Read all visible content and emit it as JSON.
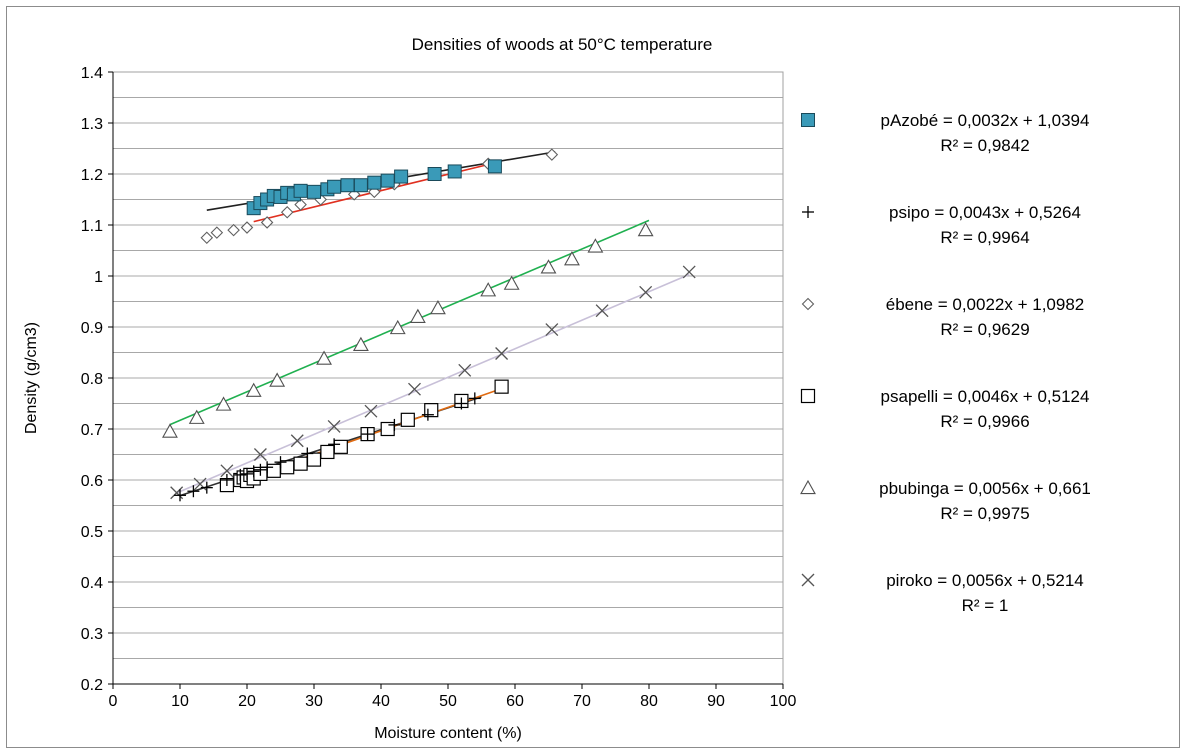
{
  "chart_data": {
    "type": "scatter",
    "title": "Densities of woods at  50°C temperature",
    "xlabel": "Moisture content (%)",
    "ylabel": "Density (g/cm3)",
    "xlim": [
      0,
      100
    ],
    "ylim": [
      0.2,
      1.4
    ],
    "x_ticks": [
      "0",
      "10",
      "20",
      "30",
      "40",
      "50",
      "60",
      "70",
      "80",
      "90",
      "100"
    ],
    "y_ticks": [
      "0.2",
      "0.3",
      "0.4",
      "0.5",
      "0.6",
      "0.7",
      "0.8",
      "0.9",
      "1",
      "1.1",
      "1.2",
      "1.3",
      "1.4"
    ],
    "grid": "horizontal",
    "legend_position": "right",
    "series": [
      {
        "marker": "square-filled",
        "line_color": "#e03020",
        "legend_line1": "pAzobé = 0,0032x + 1,0394",
        "legend_line2": "R² = 0,9842",
        "x": [
          21,
          22,
          23,
          24,
          25,
          26,
          27,
          28,
          30,
          32,
          33,
          35,
          37,
          39,
          41,
          43,
          48,
          51,
          57
        ],
        "y": [
          1.133,
          1.143,
          1.15,
          1.157,
          1.155,
          1.163,
          1.16,
          1.167,
          1.165,
          1.17,
          1.175,
          1.178,
          1.178,
          1.183,
          1.187,
          1.195,
          1.2,
          1.205,
          1.215
        ],
        "fit": {
          "slope": 0.0032,
          "intercept": 1.0394,
          "x_range": [
            21,
            57
          ]
        }
      },
      {
        "marker": "plus",
        "line_color": "#303030",
        "legend_line1": "psipo = 0,0043x + 0,5264",
        "legend_line2": "R² = 0,9964",
        "x": [
          10,
          12,
          14,
          17,
          19,
          20,
          21,
          22,
          23,
          25,
          29,
          33,
          38,
          42,
          47,
          52,
          54
        ],
        "y": [
          0.57,
          0.578,
          0.585,
          0.6,
          0.61,
          0.612,
          0.617,
          0.62,
          0.625,
          0.635,
          0.652,
          0.67,
          0.69,
          0.708,
          0.728,
          0.75,
          0.76
        ],
        "fit": {
          "slope": 0.0043,
          "intercept": 0.5264,
          "x_range": [
            10,
            55
          ]
        }
      },
      {
        "marker": "diamond",
        "line_color": "#202020",
        "legend_line1": "ébene = 0,0022x + 1,0982",
        "legend_line2": "R² = 0,9629",
        "x": [
          14,
          15.5,
          18,
          20,
          23,
          26,
          28,
          31,
          36,
          39,
          42,
          48,
          56,
          65.5
        ],
        "y": [
          1.075,
          1.085,
          1.09,
          1.095,
          1.105,
          1.125,
          1.14,
          1.15,
          1.16,
          1.165,
          1.18,
          1.2,
          1.22,
          1.238
        ],
        "fit": {
          "slope": 0.0022,
          "intercept": 1.0982,
          "x_range": [
            14,
            66
          ]
        }
      },
      {
        "marker": "square-open",
        "line_color": "#e06a10",
        "legend_line1": "psapelli = 0,0046x + 0,5124",
        "legend_line2": "R² = 0,9966",
        "x": [
          17,
          19,
          19.5,
          20,
          20.5,
          21,
          22,
          24,
          26,
          28,
          30,
          32,
          34,
          38,
          41,
          44,
          47.5,
          52,
          58
        ],
        "y": [
          0.59,
          0.6,
          0.605,
          0.598,
          0.61,
          0.603,
          0.612,
          0.618,
          0.625,
          0.632,
          0.64,
          0.655,
          0.665,
          0.69,
          0.7,
          0.718,
          0.737,
          0.755,
          0.783
        ],
        "fit": {
          "slope": 0.0046,
          "intercept": 0.5124,
          "x_range": [
            17,
            58
          ]
        }
      },
      {
        "marker": "triangle",
        "line_color": "#20b050",
        "legend_line1": "pbubinga = 0,0056x + 0,661",
        "legend_line2": "R² = 0,9975",
        "x": [
          8.5,
          12.5,
          16.5,
          21,
          24.5,
          31.5,
          37,
          42.5,
          45.5,
          48.5,
          56,
          59.5,
          65,
          68.5,
          72,
          79.5
        ],
        "y": [
          0.695,
          0.722,
          0.748,
          0.775,
          0.795,
          0.838,
          0.865,
          0.898,
          0.92,
          0.937,
          0.972,
          0.985,
          1.017,
          1.033,
          1.058,
          1.09
        ],
        "fit": {
          "slope": 0.0056,
          "intercept": 0.661,
          "x_range": [
            8.5,
            80
          ]
        }
      },
      {
        "marker": "x",
        "line_color": "#c8c0d8",
        "legend_line1": "piroko = 0,0056x + 0,5214",
        "legend_line2": "R² = 1",
        "x": [
          9.5,
          13,
          17,
          22,
          27.5,
          33,
          38.5,
          45,
          52.5,
          58,
          65.5,
          73,
          79.5,
          86
        ],
        "y": [
          0.575,
          0.592,
          0.618,
          0.65,
          0.677,
          0.705,
          0.735,
          0.778,
          0.815,
          0.848,
          0.895,
          0.932,
          0.968,
          1.008
        ],
        "fit": {
          "slope": 0.0056,
          "intercept": 0.5214,
          "x_range": [
            9.5,
            86
          ]
        }
      }
    ]
  }
}
